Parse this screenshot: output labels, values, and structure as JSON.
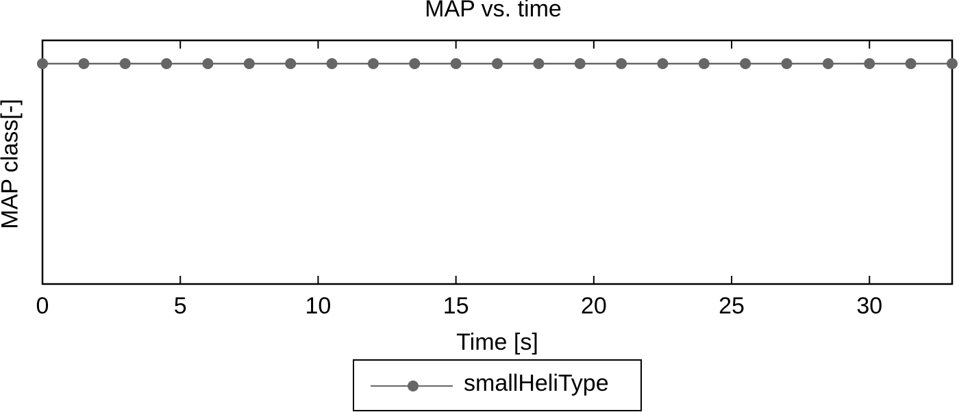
{
  "chart_data": {
    "type": "line",
    "title": "MAP vs. time",
    "xlabel": "Time [s]",
    "ylabel": "MAP class[-]",
    "xlim": [
      0,
      33
    ],
    "x_ticks": [
      0,
      5,
      10,
      15,
      20,
      25,
      30
    ],
    "y_ticks": [],
    "grid": false,
    "legend_position": "below-center",
    "series": [
      {
        "name": "smallHeliType",
        "color": "#666666",
        "marker": "circle",
        "x": [
          0,
          1.5,
          3,
          4.5,
          6,
          7.5,
          9,
          10.5,
          12,
          13.5,
          15,
          16.5,
          18,
          19.5,
          21,
          22.5,
          24,
          25.5,
          27,
          28.5,
          30,
          31.5,
          33
        ],
        "y": [
          1,
          1,
          1,
          1,
          1,
          1,
          1,
          1,
          1,
          1,
          1,
          1,
          1,
          1,
          1,
          1,
          1,
          1,
          1,
          1,
          1,
          1,
          1
        ]
      }
    ]
  },
  "labels": {
    "title": "MAP vs. time",
    "xlabel": "Time [s]",
    "ylabel": "MAP class[-]",
    "legend": "smallHeliType",
    "ticks": [
      "0",
      "5",
      "10",
      "15",
      "20",
      "25",
      "30"
    ]
  }
}
